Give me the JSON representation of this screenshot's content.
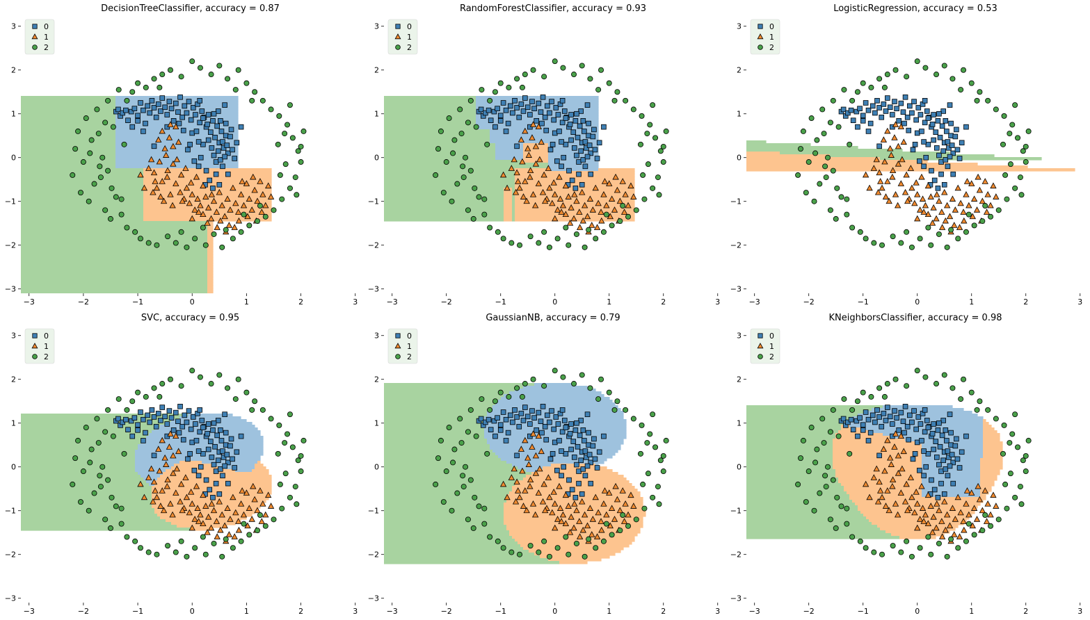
{
  "legend": [
    "0",
    "1",
    "2"
  ],
  "colors": {
    "class0_region": "#9ec2de",
    "class1_region": "#fdc48f",
    "class2_region": "#a8d3a0",
    "class0_marker": "#3f80b4",
    "class1_marker": "#ef8a30",
    "class2_marker": "#4aa14a",
    "marker_edge": "#000000",
    "legend_bg": "#e8f2e6"
  },
  "chart_data": [
    {
      "type": "scatter",
      "title": "DecisionTreeClassifier, accuracy = 0.87",
      "model": "tree",
      "xlim": [
        -3.15,
        3.08
      ],
      "ylim": [
        -3.1,
        3.25
      ],
      "xticks": [
        "−3",
        "−2",
        "−1",
        "0",
        "1",
        "2",
        "3"
      ],
      "yticks": [
        "−3",
        "−2",
        "−1",
        "0",
        "1",
        "2",
        "3"
      ],
      "legend_entries": [
        "0",
        "1",
        "2"
      ],
      "legend_position": "upper-left",
      "grid": false
    },
    {
      "type": "scatter",
      "title": "RandomForestClassifier, accuracy = 0.93",
      "model": "forest",
      "xlim": [
        -3.15,
        3.08
      ],
      "ylim": [
        -3.1,
        3.25
      ],
      "xticks": [
        "−3",
        "−2",
        "−1",
        "0",
        "1",
        "2",
        "3"
      ],
      "yticks": [
        "−3",
        "−2",
        "−1",
        "0",
        "1",
        "2",
        "3"
      ],
      "legend_entries": [
        "0",
        "1",
        "2"
      ],
      "legend_position": "upper-left",
      "grid": false
    },
    {
      "type": "scatter",
      "title": "LogisticRegression, accuracy = 0.53",
      "model": "logistic",
      "xlim": [
        -3.15,
        3.08
      ],
      "ylim": [
        -3.1,
        3.25
      ],
      "xticks": [
        "−3",
        "−2",
        "−1",
        "0",
        "1",
        "2",
        "3"
      ],
      "yticks": [
        "−3",
        "−2",
        "−1",
        "0",
        "1",
        "2",
        "3"
      ],
      "legend_entries": [
        "0",
        "1",
        "2"
      ],
      "legend_position": "upper-left",
      "grid": false
    },
    {
      "type": "scatter",
      "title": "SVC, accuracy = 0.95",
      "model": "svc",
      "xlim": [
        -3.15,
        3.08
      ],
      "ylim": [
        -3.1,
        3.25
      ],
      "xticks": [
        "−3",
        "−2",
        "−1",
        "0",
        "1",
        "2",
        "3"
      ],
      "yticks": [
        "−3",
        "−2",
        "−1",
        "0",
        "1",
        "2",
        "3"
      ],
      "legend_entries": [
        "0",
        "1",
        "2"
      ],
      "legend_position": "upper-left",
      "grid": false
    },
    {
      "type": "scatter",
      "title": "GaussianNB, accuracy = 0.79",
      "model": "nb",
      "xlim": [
        -3.15,
        3.08
      ],
      "ylim": [
        -3.1,
        3.25
      ],
      "xticks": [
        "−3",
        "−2",
        "−1",
        "0",
        "1",
        "2",
        "3"
      ],
      "yticks": [
        "−3",
        "−2",
        "−1",
        "0",
        "1",
        "2",
        "3"
      ],
      "legend_entries": [
        "0",
        "1",
        "2"
      ],
      "legend_position": "upper-left",
      "grid": false
    },
    {
      "type": "scatter",
      "title": "KNeighborsClassifier, accuracy = 0.98",
      "model": "knn",
      "xlim": [
        -3.15,
        3.08
      ],
      "ylim": [
        -3.1,
        3.25
      ],
      "xticks": [
        "−3",
        "−2",
        "−1",
        "0",
        "1",
        "2",
        "3"
      ],
      "yticks": [
        "−3",
        "−2",
        "−1",
        "0",
        "1",
        "2",
        "3"
      ],
      "legend_entries": [
        "0",
        "1",
        "2"
      ],
      "legend_position": "upper-left",
      "grid": false
    }
  ],
  "scatter_points": {
    "class0": [
      [
        -1.4,
        1.05
      ],
      [
        -1.36,
        1.1
      ],
      [
        -1.32,
        0.95
      ],
      [
        -1.28,
        1.02
      ],
      [
        -1.22,
        1.08
      ],
      [
        -1.18,
        0.85
      ],
      [
        -1.12,
        1.05
      ],
      [
        -1.06,
        1.12
      ],
      [
        -1.0,
        0.96
      ],
      [
        -0.95,
        1.25
      ],
      [
        -0.9,
        1.08
      ],
      [
        -0.86,
        0.78
      ],
      [
        -0.82,
        1.18
      ],
      [
        -0.78,
        1.02
      ],
      [
        -0.74,
        1.3
      ],
      [
        -0.7,
        1.14
      ],
      [
        -0.66,
        0.92
      ],
      [
        -0.62,
        1.22
      ],
      [
        -0.58,
        1.06
      ],
      [
        -0.55,
        1.36
      ],
      [
        -0.5,
        1.15
      ],
      [
        -0.46,
        0.98
      ],
      [
        -0.42,
        1.28
      ],
      [
        -0.38,
        1.12
      ],
      [
        -0.34,
        0.84
      ],
      [
        -0.3,
        1.24
      ],
      [
        -0.26,
        1.04
      ],
      [
        -0.22,
        1.38
      ],
      [
        -0.18,
        0.92
      ],
      [
        -0.14,
        1.18
      ],
      [
        -0.1,
        1.02
      ],
      [
        -0.06,
        1.28
      ],
      [
        -0.02,
        0.86
      ],
      [
        0.02,
        1.14
      ],
      [
        0.06,
        0.98
      ],
      [
        0.1,
        1.22
      ],
      [
        0.14,
        0.8
      ],
      [
        0.18,
        1.06
      ],
      [
        0.22,
        0.92
      ],
      [
        0.26,
        0.7
      ],
      [
        0.3,
        0.98
      ],
      [
        0.34,
        0.58
      ],
      [
        0.38,
        0.84
      ],
      [
        0.42,
        0.46
      ],
      [
        0.46,
        0.72
      ],
      [
        0.5,
        0.34
      ],
      [
        0.54,
        0.6
      ],
      [
        0.58,
        0.22
      ],
      [
        0.62,
        0.5
      ],
      [
        0.66,
        0.1
      ],
      [
        0.3,
        0.4
      ],
      [
        0.36,
        0.22
      ],
      [
        0.4,
        0.05
      ],
      [
        0.44,
        -0.1
      ],
      [
        0.48,
        0.15
      ],
      [
        0.52,
        -0.05
      ],
      [
        0.56,
        0.36
      ],
      [
        0.6,
        0.02
      ],
      [
        0.64,
        0.28
      ],
      [
        0.7,
        0.48
      ],
      [
        0.74,
        0.18
      ],
      [
        0.78,
        -0.02
      ],
      [
        0.2,
        0.3
      ],
      [
        0.16,
        0.0
      ],
      [
        0.12,
        -0.2
      ],
      [
        0.26,
        -0.3
      ],
      [
        0.32,
        -0.52
      ],
      [
        0.38,
        -0.7
      ],
      [
        0.44,
        -0.38
      ],
      [
        0.5,
        -0.62
      ],
      [
        0.24,
        -0.62
      ],
      [
        0.0,
        0.56
      ],
      [
        -0.04,
        0.3
      ],
      [
        0.08,
        0.6
      ],
      [
        -0.46,
        0.7
      ],
      [
        -0.7,
        0.26
      ],
      [
        0.82,
        0.34
      ],
      [
        0.56,
        -0.2
      ],
      [
        0.66,
        -0.38
      ],
      [
        0.28,
        0.76
      ],
      [
        0.62,
        0.78
      ],
      [
        0.48,
        1.06
      ],
      [
        0.4,
        1.0
      ],
      [
        0.72,
        0.64
      ],
      [
        -0.16,
        0.62
      ],
      [
        0.04,
        -0.08
      ],
      [
        0.12,
        0.36
      ],
      [
        -0.24,
        0.78
      ],
      [
        0.9,
        0.7
      ],
      [
        0.6,
        1.2
      ],
      [
        0.14,
        1.3
      ],
      [
        -1.1,
        0.7
      ],
      [
        -0.9,
        0.6
      ],
      [
        -0.08,
        0.18
      ],
      [
        0.2,
        0.9
      ],
      [
        0.52,
        0.84
      ],
      [
        -1.0,
        0.84
      ]
    ],
    "class1": [
      [
        -0.75,
        -0.05
      ],
      [
        -0.7,
        -0.35
      ],
      [
        -0.65,
        -0.7
      ],
      [
        -0.6,
        -0.1
      ],
      [
        -0.55,
        -0.55
      ],
      [
        -0.5,
        0.2
      ],
      [
        -0.45,
        -0.3
      ],
      [
        -0.4,
        -0.85
      ],
      [
        -0.35,
        -0.15
      ],
      [
        -0.3,
        -0.6
      ],
      [
        -0.25,
        0.35
      ],
      [
        -0.2,
        -0.4
      ],
      [
        -0.15,
        -0.95
      ],
      [
        -0.1,
        -0.7
      ],
      [
        -0.05,
        -1.05
      ],
      [
        0.0,
        -0.85
      ],
      [
        0.05,
        -1.2
      ],
      [
        0.1,
        -0.95
      ],
      [
        0.15,
        -1.1
      ],
      [
        0.2,
        -1.3
      ],
      [
        0.25,
        -0.9
      ],
      [
        0.3,
        -1.15
      ],
      [
        0.35,
        -1.4
      ],
      [
        0.4,
        -1.0
      ],
      [
        0.45,
        -1.25
      ],
      [
        0.5,
        -0.8
      ],
      [
        0.55,
        -1.1
      ],
      [
        0.6,
        -1.35
      ],
      [
        0.65,
        -0.95
      ],
      [
        0.7,
        -1.2
      ],
      [
        0.75,
        -0.7
      ],
      [
        0.8,
        -1.05
      ],
      [
        0.85,
        -1.25
      ],
      [
        0.9,
        -0.85
      ],
      [
        0.95,
        -1.1
      ],
      [
        1.0,
        -0.6
      ],
      [
        1.05,
        -0.95
      ],
      [
        1.1,
        -1.2
      ],
      [
        1.15,
        -0.75
      ],
      [
        1.2,
        -1.0
      ],
      [
        1.25,
        -0.55
      ],
      [
        1.3,
        -0.85
      ],
      [
        1.35,
        -1.1
      ],
      [
        1.4,
        -0.65
      ],
      [
        -0.62,
        0.4
      ],
      [
        -0.55,
        0.6
      ],
      [
        -0.48,
        0.05
      ],
      [
        -0.42,
        0.45
      ],
      [
        -0.35,
        0.25
      ],
      [
        -0.28,
        -0.05
      ],
      [
        -0.68,
        -0.55
      ],
      [
        -0.8,
        -0.25
      ],
      [
        -0.58,
        -0.9
      ],
      [
        -0.46,
        -0.45
      ],
      [
        -0.22,
        -0.8
      ],
      [
        -0.12,
        -0.25
      ],
      [
        0.08,
        -0.45
      ],
      [
        0.2,
        -0.65
      ],
      [
        0.36,
        -0.85
      ],
      [
        0.52,
        -1.45
      ],
      [
        0.68,
        -1.55
      ],
      [
        0.86,
        -1.45
      ],
      [
        1.02,
        -1.35
      ],
      [
        1.18,
        -1.45
      ],
      [
        -0.4,
        0.75
      ],
      [
        -0.3,
        0.7
      ],
      [
        -0.72,
        -0.8
      ],
      [
        -0.52,
        -1.0
      ],
      [
        -0.18,
        -1.0
      ],
      [
        0.12,
        -1.25
      ],
      [
        0.28,
        -1.5
      ],
      [
        0.46,
        -1.6
      ],
      [
        0.62,
        -1.7
      ],
      [
        0.78,
        -1.6
      ],
      [
        1.28,
        -1.25
      ],
      [
        1.45,
        -0.9
      ],
      [
        -0.88,
        -0.7
      ],
      [
        -0.95,
        -0.4
      ],
      [
        -0.36,
        -1.1
      ],
      [
        0.0,
        -1.4
      ],
      [
        -0.02,
        -0.58
      ],
      [
        0.92,
        -0.55
      ],
      [
        1.12,
        -0.45
      ]
    ],
    "class2": [
      [
        -2.1,
        0.6
      ],
      [
        -2.15,
        0.2
      ],
      [
        -2.2,
        -0.4
      ],
      [
        -2.05,
        -0.8
      ],
      [
        -1.95,
        0.9
      ],
      [
        -1.9,
        -1.0
      ],
      [
        -1.85,
        0.4
      ],
      [
        -1.8,
        -0.6
      ],
      [
        -1.75,
        1.1
      ],
      [
        -1.7,
        -0.2
      ],
      [
        -1.65,
        0.0
      ],
      [
        -1.6,
        -1.2
      ],
      [
        -1.55,
        1.3
      ],
      [
        -1.5,
        -1.4
      ],
      [
        -1.45,
        0.7
      ],
      [
        -1.4,
        -0.9
      ],
      [
        -1.35,
        1.55
      ],
      [
        -1.3,
        -1.3
      ],
      [
        -1.25,
        0.3
      ],
      [
        -1.2,
        -1.6
      ],
      [
        -1.1,
        1.5
      ],
      [
        -1.05,
        -1.7
      ],
      [
        -1.0,
        1.7
      ],
      [
        -0.95,
        -1.85
      ],
      [
        -0.85,
        1.6
      ],
      [
        -0.8,
        -1.95
      ],
      [
        -0.7,
        1.8
      ],
      [
        -0.65,
        -2.0
      ],
      [
        -0.55,
        1.9
      ],
      [
        -0.45,
        -1.8
      ],
      [
        -0.4,
        2.0
      ],
      [
        -0.3,
        -1.95
      ],
      [
        -0.2,
        1.85
      ],
      [
        -0.1,
        -2.05
      ],
      [
        0.0,
        2.2
      ],
      [
        0.05,
        -1.85
      ],
      [
        0.15,
        2.05
      ],
      [
        0.25,
        -2.0
      ],
      [
        0.35,
        1.9
      ],
      [
        0.4,
        -1.75
      ],
      [
        0.5,
        2.1
      ],
      [
        0.55,
        -2.05
      ],
      [
        0.65,
        1.8
      ],
      [
        0.75,
        -1.85
      ],
      [
        0.85,
        2.0
      ],
      [
        0.9,
        -1.7
      ],
      [
        1.0,
        1.7
      ],
      [
        1.05,
        -1.55
      ],
      [
        1.15,
        1.5
      ],
      [
        1.2,
        -1.45
      ],
      [
        1.3,
        1.3
      ],
      [
        1.35,
        -1.35
      ],
      [
        1.45,
        1.1
      ],
      [
        1.5,
        -1.2
      ],
      [
        1.6,
        0.95
      ],
      [
        1.65,
        -0.95
      ],
      [
        1.75,
        0.75
      ],
      [
        1.8,
        -0.7
      ],
      [
        1.85,
        0.45
      ],
      [
        1.9,
        -0.45
      ],
      [
        1.95,
        0.15
      ],
      [
        2.0,
        -0.1
      ],
      [
        2.05,
        0.6
      ],
      [
        2.0,
        0.25
      ],
      [
        1.92,
        -0.85
      ],
      [
        1.8,
        1.2
      ],
      [
        -2.0,
        -0.1
      ],
      [
        -1.88,
        0.1
      ],
      [
        -1.6,
        0.8
      ],
      [
        -1.55,
        -0.3
      ],
      [
        -1.48,
        -0.7
      ],
      [
        1.58,
        0.3
      ],
      [
        1.62,
        -0.4
      ],
      [
        1.7,
        0.55
      ],
      [
        1.72,
        -0.15
      ],
      [
        -1.72,
        0.55
      ],
      [
        -1.68,
        -0.45
      ],
      [
        0.62,
        -1.65
      ],
      [
        0.2,
        -1.6
      ],
      [
        -0.2,
        -1.7
      ],
      [
        0.8,
        1.55
      ],
      [
        -0.6,
        1.6
      ],
      [
        1.1,
        1.3
      ],
      [
        -1.2,
        1.3
      ],
      [
        -1.3,
        -0.95
      ],
      [
        1.25,
        -1.1
      ],
      [
        0.95,
        -1.3
      ]
    ]
  }
}
